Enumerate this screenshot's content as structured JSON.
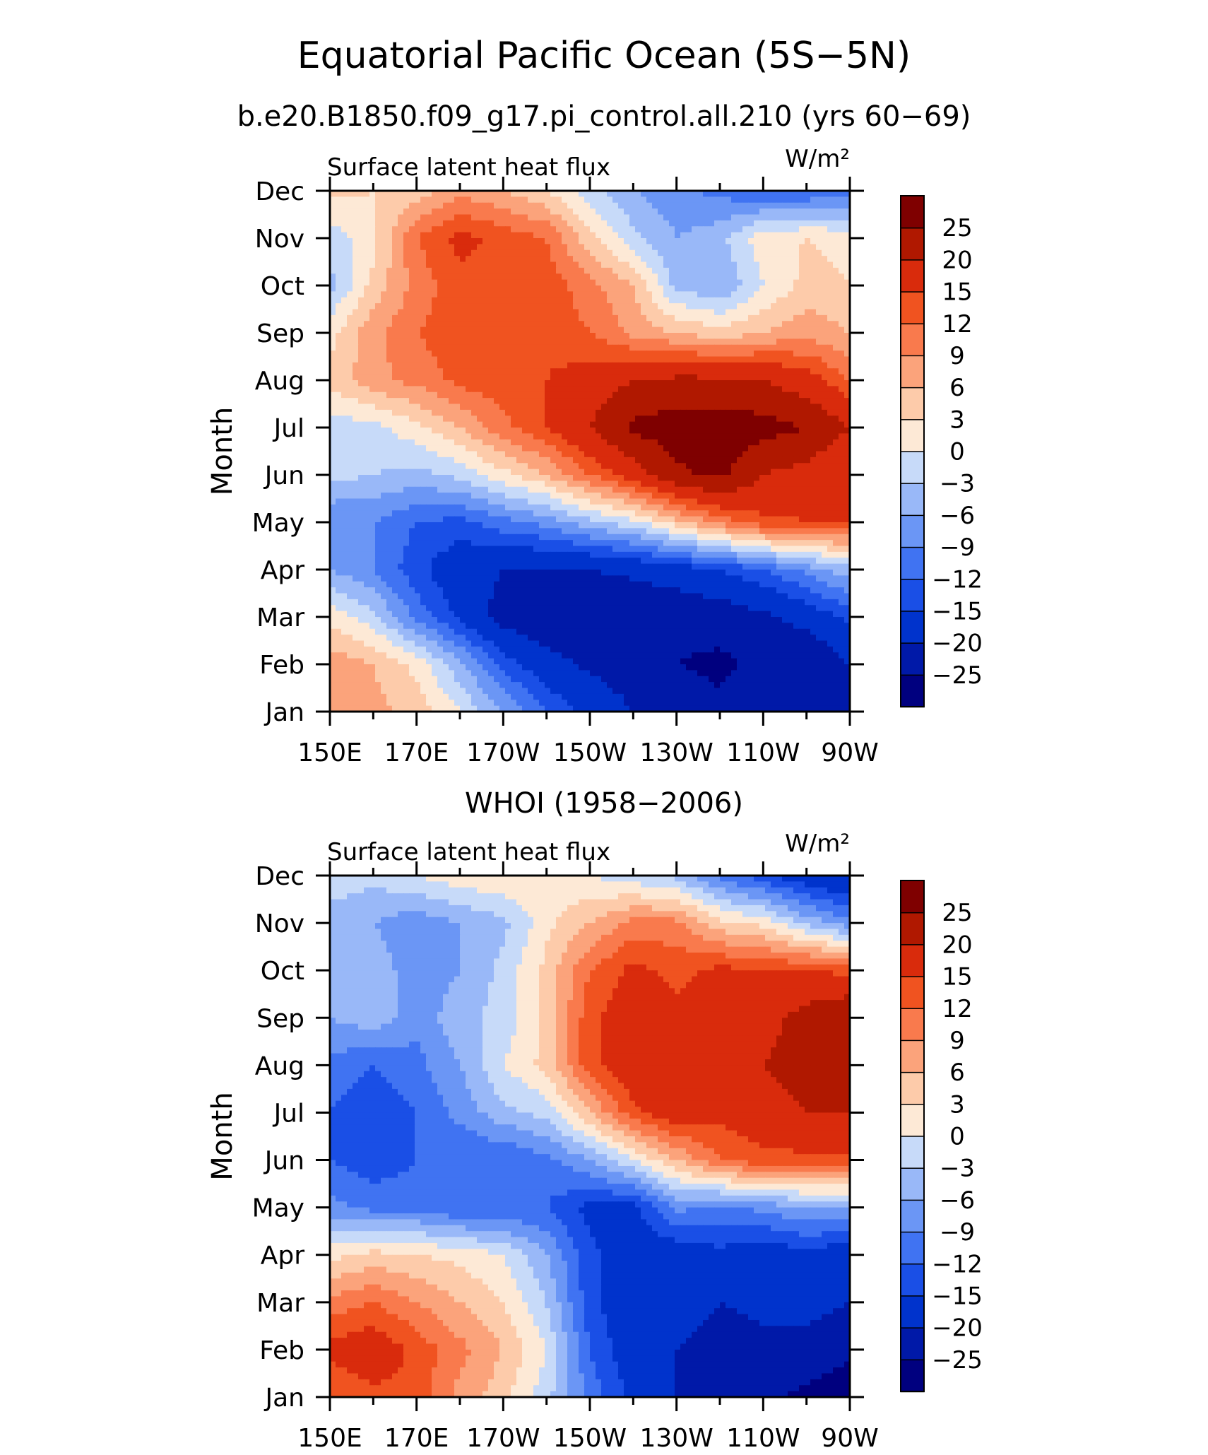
{
  "figure": {
    "title": "Equatorial Pacific Ocean (5S−5N)",
    "subtitle": "b.e20.B1850.f09_g17.pi_control.all.210 (yrs 60−69)"
  },
  "chart_data": [
    {
      "type": "heatmap",
      "title": "b.e20.B1850.f09_g17.pi_control.all.210 (yrs 60−69)",
      "left_string": "Surface latent heat flux",
      "right_string": "W/m²",
      "xlabel": "",
      "ylabel": "Month",
      "x": [
        "150E",
        "160E",
        "170E",
        "180",
        "170W",
        "160W",
        "150W",
        "140W",
        "130W",
        "120W",
        "110W",
        "100W",
        "90W"
      ],
      "x_tick_labels": [
        "150E",
        "170E",
        "170W",
        "150W",
        "130W",
        "110W",
        "90W"
      ],
      "y": [
        "Jan",
        "Feb",
        "Mar",
        "Apr",
        "May",
        "Jun",
        "Jul",
        "Aug",
        "Sep",
        "Oct",
        "Nov",
        "Dec"
      ],
      "values": [
        [
          8,
          7,
          5,
          0,
          -6,
          -12,
          -16,
          -20,
          -22,
          -24,
          -22,
          -24,
          -20
        ],
        [
          8,
          6,
          2,
          -5,
          -13,
          -18,
          -21,
          -23,
          -25,
          -26,
          -24,
          -25,
          -20
        ],
        [
          2,
          -2,
          -10,
          -16,
          -22,
          -24,
          -25,
          -24,
          -24,
          -23,
          -21,
          -18,
          -14
        ],
        [
          -6,
          -9,
          -14,
          -18,
          -20,
          -20,
          -20,
          -19,
          -17,
          -15,
          -12,
          -8,
          -4
        ],
        [
          -9,
          -9,
          -12,
          -13,
          -10,
          -8,
          -4,
          -1,
          5,
          10,
          14,
          15,
          15
        ],
        [
          -2,
          -3,
          -4,
          -2,
          2,
          6,
          12,
          17,
          24,
          26,
          20,
          18,
          15
        ],
        [
          -2,
          -1,
          2,
          6,
          11,
          15,
          20,
          26,
          28,
          28,
          27,
          25,
          20
        ],
        [
          4,
          8,
          10,
          13,
          14,
          15,
          17,
          20,
          21,
          21,
          20,
          17,
          12
        ],
        [
          2,
          8,
          12,
          14,
          14,
          14,
          12,
          8,
          6,
          4,
          6,
          8,
          6
        ],
        [
          -4,
          4,
          10,
          14,
          14,
          14,
          10,
          6,
          -4,
          -6,
          0,
          4,
          3
        ],
        [
          -2,
          2,
          12,
          16,
          14,
          12,
          4,
          -2,
          -6,
          -4,
          2,
          3,
          2
        ],
        [
          4,
          3,
          4,
          8,
          6,
          3,
          -2,
          -6,
          -8,
          -10,
          -12,
          -12,
          -10
        ]
      ],
      "zlim": [
        -30,
        30
      ]
    },
    {
      "type": "heatmap",
      "title": "WHOI (1958−2006)",
      "left_string": "Surface latent heat flux",
      "right_string": "W/m²",
      "xlabel": "",
      "ylabel": "Month",
      "x": [
        "150E",
        "160E",
        "170E",
        "180",
        "170W",
        "160W",
        "150W",
        "140W",
        "130W",
        "120W",
        "110W",
        "100W",
        "90W"
      ],
      "x_tick_labels": [
        "150E",
        "170E",
        "170W",
        "150W",
        "130W",
        "110W",
        "90W"
      ],
      "y": [
        "Jan",
        "Feb",
        "Mar",
        "Apr",
        "May",
        "Jun",
        "Jul",
        "Aug",
        "Sep",
        "Oct",
        "Nov",
        "Dec"
      ],
      "values": [
        [
          12,
          14,
          14,
          8,
          4,
          -2,
          -10,
          -16,
          -20,
          -22,
          -24,
          -26,
          -28
        ],
        [
          16,
          18,
          14,
          10,
          6,
          0,
          -12,
          -18,
          -20,
          -24,
          -22,
          -22,
          -24
        ],
        [
          10,
          12,
          9,
          6,
          3,
          -3,
          -14,
          -18,
          -16,
          -20,
          -18,
          -18,
          -20
        ],
        [
          2,
          4,
          3,
          2,
          0,
          -6,
          -14,
          -18,
          -18,
          -16,
          -18,
          -16,
          -18
        ],
        [
          -8,
          -10,
          -10,
          -12,
          -12,
          -12,
          -16,
          -16,
          -8,
          -10,
          -8,
          -6,
          -6
        ],
        [
          -12,
          -14,
          -12,
          -12,
          -12,
          -10,
          -6,
          0,
          6,
          12,
          14,
          14,
          14
        ],
        [
          -12,
          -14,
          -12,
          -8,
          -4,
          -2,
          6,
          14,
          18,
          16,
          18,
          20,
          20
        ],
        [
          -10,
          -12,
          -10,
          -6,
          0,
          4,
          14,
          18,
          20,
          16,
          20,
          22,
          20
        ],
        [
          -6,
          -4,
          -8,
          -4,
          -2,
          4,
          14,
          18,
          16,
          16,
          18,
          22,
          25
        ],
        [
          -6,
          -4,
          -8,
          -6,
          -2,
          4,
          12,
          16,
          14,
          16,
          15,
          15,
          14
        ],
        [
          -6,
          -6,
          -8,
          -6,
          -4,
          2,
          6,
          10,
          10,
          4,
          2,
          -4,
          -8
        ],
        [
          0,
          -2,
          0,
          2,
          3,
          2,
          0,
          -2,
          -4,
          -10,
          -14,
          -18,
          -20
        ]
      ],
      "zlim": [
        -30,
        30
      ]
    }
  ],
  "colorbar": {
    "levels": [
      -25,
      -20,
      -15,
      -12,
      -9,
      -6,
      -3,
      0,
      3,
      6,
      9,
      12,
      15,
      20,
      25
    ],
    "labels": [
      "−25",
      "−20",
      "−15",
      "−12",
      "−9",
      "−6",
      "−3",
      "0",
      "3",
      "6",
      "9",
      "12",
      "15",
      "20",
      "25"
    ],
    "colors": [
      "#00007f",
      "#0019a8",
      "#0033cc",
      "#1a4fe6",
      "#4073f2",
      "#6b96f5",
      "#99b8f8",
      "#c7daf9",
      "#fde9d6",
      "#fdcbaa",
      "#fba37b",
      "#f97a4d",
      "#f05320",
      "#d92b0c",
      "#b01800",
      "#7f0000"
    ]
  }
}
